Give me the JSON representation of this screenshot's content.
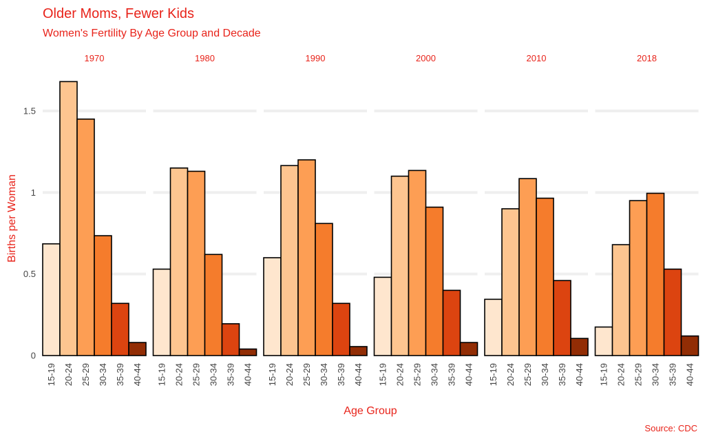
{
  "chart_data": {
    "type": "bar",
    "title": "Older Moms, Fewer Kids",
    "subtitle": "Women's Fertility By Age Group and Decade",
    "xlabel": "Age Group",
    "ylabel": "Births per Woman",
    "caption": "Source: CDC",
    "ylim": [
      0,
      1.7
    ],
    "yticks": [
      {
        "value": 0,
        "label": "0"
      },
      {
        "value": 0.5,
        "label": "0.5"
      },
      {
        "value": 1,
        "label": "1"
      },
      {
        "value": 1.5,
        "label": "1.5"
      }
    ],
    "grid": true,
    "legend": "none",
    "categories": [
      "15-19",
      "20-24",
      "25-29",
      "30-34",
      "35-39",
      "40-44"
    ],
    "colors": [
      "#fee6ce",
      "#fdc590",
      "#fd9e54",
      "#f57c2c",
      "#dc4410",
      "#922d05"
    ],
    "facets": [
      {
        "label": "1970",
        "values": [
          0.685,
          1.68,
          1.45,
          0.735,
          0.32,
          0.08
        ]
      },
      {
        "label": "1980",
        "values": [
          0.53,
          1.15,
          1.13,
          0.62,
          0.195,
          0.04
        ]
      },
      {
        "label": "1990",
        "values": [
          0.6,
          1.165,
          1.2,
          0.81,
          0.32,
          0.055
        ]
      },
      {
        "label": "2000",
        "values": [
          0.48,
          1.1,
          1.135,
          0.91,
          0.4,
          0.08
        ]
      },
      {
        "label": "2010",
        "values": [
          0.345,
          0.9,
          1.085,
          0.965,
          0.46,
          0.105
        ]
      },
      {
        "label": "2018",
        "values": [
          0.175,
          0.68,
          0.95,
          0.995,
          0.53,
          0.12
        ]
      }
    ]
  }
}
